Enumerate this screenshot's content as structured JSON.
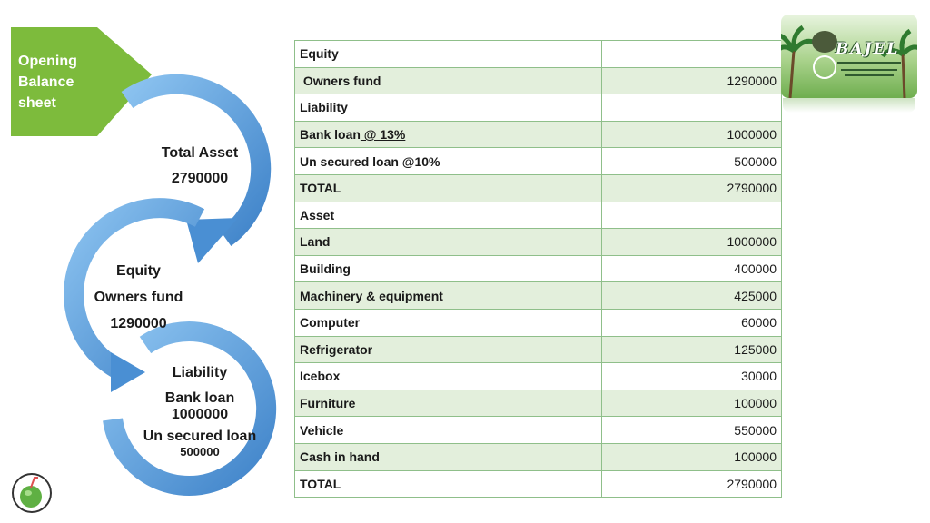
{
  "banner": {
    "title": "Opening\nBalance\nsheet"
  },
  "cycle": {
    "top": {
      "heading": "Total Asset",
      "value": "2790000"
    },
    "middle": {
      "line1": "Equity",
      "line2": "Owners fund",
      "line3": "1290000"
    },
    "bottom": {
      "line1": "Liability",
      "line2": "Bank loan",
      "line3": "1000000",
      "line4": "Un secured loan",
      "line5": "500000"
    }
  },
  "table": {
    "rows": [
      {
        "label": "Equity",
        "value": ""
      },
      {
        "label": " Owners fund",
        "value": "1290000"
      },
      {
        "label": "Liability",
        "value": ""
      },
      {
        "label": "Bank loan",
        "label_extra": " @ 13%",
        "value": "1000000"
      },
      {
        "label": "Un secured loan @10%",
        "value": "500000"
      },
      {
        "label": "TOTAL",
        "value": "2790000"
      },
      {
        "label": "Asset",
        "value": ""
      },
      {
        "label": "Land",
        "value": "1000000"
      },
      {
        "label": "Building",
        "value": "400000"
      },
      {
        "label": "Machinery & equipment",
        "value": "425000"
      },
      {
        "label": "Computer",
        "value": "60000"
      },
      {
        "label": "Refrigerator",
        "value": "125000"
      },
      {
        "label": "Icebox",
        "value": "30000"
      },
      {
        "label": "Furniture",
        "value": "100000"
      },
      {
        "label": "Vehicle",
        "value": "550000"
      },
      {
        "label": "Cash in hand",
        "value": "100000"
      },
      {
        "label": "TOTAL",
        "value": "2790000"
      }
    ]
  },
  "logo": {
    "name": "BAJEL",
    "icon": "palm-tree-logo-icon"
  },
  "footer_icon": "coconut-drink-icon",
  "colors": {
    "banner": "#7dbb3c",
    "arrow": "#5f9ed8",
    "row_alt": "#e3efdc",
    "border": "#8fbf8a"
  }
}
